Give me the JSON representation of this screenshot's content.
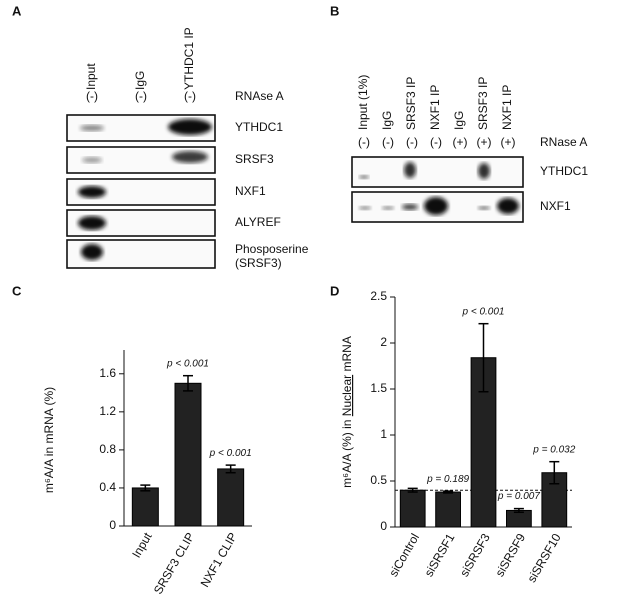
{
  "blot_a": {
    "panel": "A",
    "lanes": [
      "Input",
      "IgG",
      "YTHDC1 IP"
    ],
    "treatments": [
      "(-)",
      "(-)",
      "(-)"
    ],
    "treatment_label": "RNAse A",
    "blots": [
      "YTHDC1",
      "SRSF3",
      "NXF1",
      "ALYREF",
      "Phosposerine\n(SRSF3)"
    ]
  },
  "blot_b": {
    "panel": "B",
    "lanes": [
      "Input (1%)",
      "IgG",
      "SRSF3 IP",
      "NXF1 IP",
      "IgG",
      "SRSF3 IP",
      "NXF1 IP"
    ],
    "treatments": [
      "(-)",
      "(-)",
      "(-)",
      "(-)",
      "(+)",
      "(+)",
      "(+)"
    ],
    "treatment_label": "RNase A",
    "blots": [
      "YTHDC1",
      "NXF1"
    ]
  },
  "chart_data": [
    {
      "type": "bar",
      "panel": "C",
      "ylabel": "m⁶A/A in mRNA (%)",
      "categories": [
        "Input",
        "SRSF3 CLIP",
        "NXF1 CLIP"
      ],
      "values": [
        0.4,
        1.5,
        0.6
      ],
      "errors": [
        0.03,
        0.08,
        0.04
      ],
      "color": "#222222",
      "ylim": [
        0,
        1.85
      ],
      "yticks": [
        0,
        0.4,
        0.8,
        1.2,
        1.6
      ],
      "annotations": [
        {
          "category": "SRSF3 CLIP",
          "text": "p < 0.001"
        },
        {
          "category": "NXF1 CLIP",
          "text": "p < 0.001"
        }
      ]
    },
    {
      "type": "bar",
      "panel": "D",
      "ylabel": [
        "m⁶A/A (%) in ",
        "Nuclear",
        " mRNA"
      ],
      "categories": [
        "siControl",
        "siSRSF1",
        "siSRSF3",
        "siSRSF9",
        "siSRSF10"
      ],
      "values": [
        0.4,
        0.38,
        1.84,
        0.18,
        0.59
      ],
      "errors": [
        0.02,
        0.01,
        0.37,
        0.02,
        0.12
      ],
      "color": "#222222",
      "ylim": [
        0,
        2.5
      ],
      "yticks": [
        0,
        0.5,
        1,
        1.5,
        2,
        2.5
      ],
      "reference_line": 0.4,
      "annotations": [
        {
          "category": "siSRSF1",
          "text": "p = 0.189"
        },
        {
          "category": "siSRSF3",
          "text": "p < 0.001"
        },
        {
          "category": "siSRSF9",
          "text": "p = 0.007"
        },
        {
          "category": "siSRSF10",
          "text": "p = 0.032"
        }
      ]
    }
  ]
}
